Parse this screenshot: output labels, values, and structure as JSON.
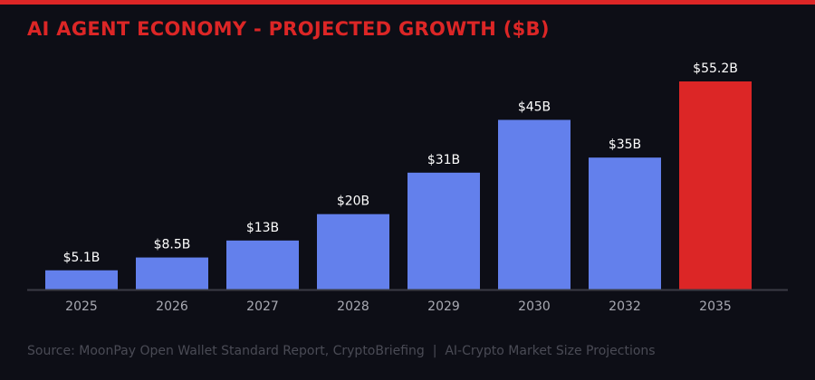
{
  "header": {
    "title": "AI AGENT ECONOMY - PROJECTED GROWTH ($B)"
  },
  "footer": {
    "source": "Source: MoonPay Open Wallet Standard Report, CryptoBriefing  |  AI-Crypto Market Size Projections"
  },
  "colors": {
    "accent": "#dc2626",
    "bar": "#6380ec",
    "highlight_bar": "#dc2626",
    "background": "#0d0e16"
  },
  "chart_data": {
    "type": "bar",
    "title": "AI AGENT ECONOMY - PROJECTED GROWTH ($B)",
    "categories": [
      "2025",
      "2026",
      "2027",
      "2028",
      "2029",
      "2030",
      "2032",
      "2035"
    ],
    "values": [
      5.1,
      8.5,
      13,
      20,
      31,
      45,
      35,
      55.2
    ],
    "data_labels": [
      "$5.1B",
      "$8.5B",
      "$13B",
      "$20B",
      "$31B",
      "$45B",
      "$35B",
      "$55.2B"
    ],
    "highlight_category": "2035",
    "xlabel": "",
    "ylabel": "",
    "ylim": [
      0,
      55.2
    ],
    "grid": false,
    "y_axis_visible": false
  }
}
